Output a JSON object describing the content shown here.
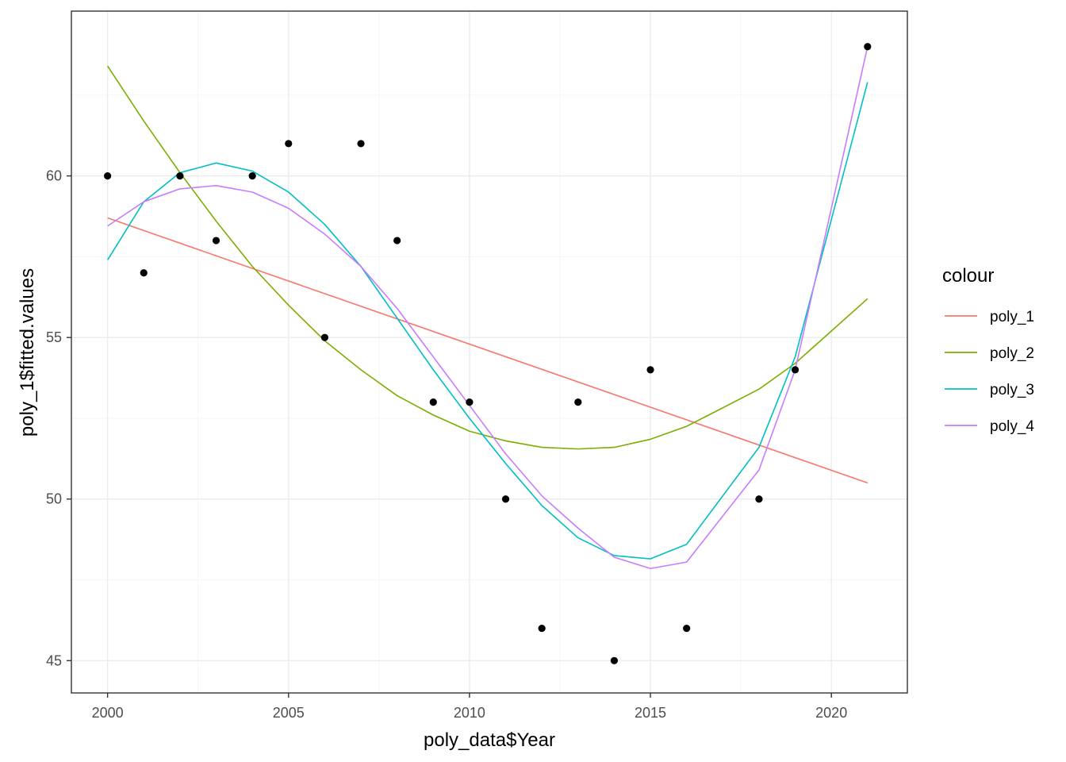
{
  "chart_data": {
    "type": "scatter",
    "title": "",
    "xlabel": "poly_data$Year",
    "ylabel": "poly_1$fitted.values",
    "xlim": [
      1999.0,
      2022.1
    ],
    "ylim": [
      44.0,
      65.1
    ],
    "x_ticks": [
      2000,
      2005,
      2010,
      2015,
      2020
    ],
    "y_ticks": [
      45,
      50,
      55,
      60
    ],
    "x_tick_labels": [
      "2000",
      "2005",
      "2010",
      "2015",
      "2020"
    ],
    "y_tick_labels": [
      "45",
      "50",
      "55",
      "60"
    ],
    "grid": true,
    "legend": {
      "title": "colour",
      "position": "right"
    },
    "points": {
      "x": [
        2000,
        2001,
        2002,
        2003,
        2004,
        2005,
        2006,
        2007,
        2008,
        2009,
        2010,
        2011,
        2012,
        2013,
        2014,
        2015,
        2016,
        2018,
        2019,
        2021
      ],
      "y": [
        60,
        57,
        60,
        58,
        60,
        61,
        55,
        61,
        58,
        53,
        53,
        50,
        46,
        53,
        45,
        54,
        46,
        50,
        54,
        64
      ],
      "color": "#000000"
    },
    "series": [
      {
        "name": "poly_1",
        "color": "#F8766D",
        "x": [
          2000,
          2021
        ],
        "values": [
          58.7,
          50.5
        ]
      },
      {
        "name": "poly_2",
        "color": "#7CAE00",
        "x": [
          2000,
          2001,
          2002,
          2003,
          2004,
          2005,
          2006,
          2007,
          2008,
          2009,
          2010,
          2011,
          2012,
          2013,
          2014,
          2015,
          2016,
          2018,
          2019,
          2021
        ],
        "values": [
          63.4,
          61.7,
          60.1,
          58.6,
          57.2,
          56.0,
          54.9,
          54.0,
          53.2,
          52.6,
          52.1,
          51.8,
          51.6,
          51.55,
          51.6,
          51.85,
          52.25,
          53.4,
          54.2,
          56.2
        ]
      },
      {
        "name": "poly_3",
        "color": "#00BFC4",
        "x": [
          2000,
          2001,
          2002,
          2003,
          2004,
          2005,
          2006,
          2007,
          2008,
          2009,
          2010,
          2011,
          2012,
          2013,
          2014,
          2015,
          2016,
          2018,
          2019,
          2021
        ],
        "values": [
          57.4,
          59.2,
          60.1,
          60.4,
          60.15,
          59.5,
          58.5,
          57.2,
          55.6,
          54.0,
          52.5,
          51.1,
          49.8,
          48.8,
          48.25,
          48.15,
          48.6,
          51.6,
          54.4,
          62.9
        ]
      },
      {
        "name": "poly_4",
        "color": "#C77CFF",
        "x": [
          2000,
          2001,
          2002,
          2003,
          2004,
          2005,
          2006,
          2007,
          2008,
          2009,
          2010,
          2011,
          2012,
          2013,
          2014,
          2015,
          2016,
          2018,
          2019,
          2021
        ],
        "values": [
          58.45,
          59.2,
          59.6,
          59.7,
          59.5,
          59.0,
          58.2,
          57.2,
          55.9,
          54.4,
          52.9,
          51.4,
          50.1,
          49.1,
          48.2,
          47.85,
          48.05,
          50.9,
          54.0,
          64.0
        ]
      }
    ]
  }
}
